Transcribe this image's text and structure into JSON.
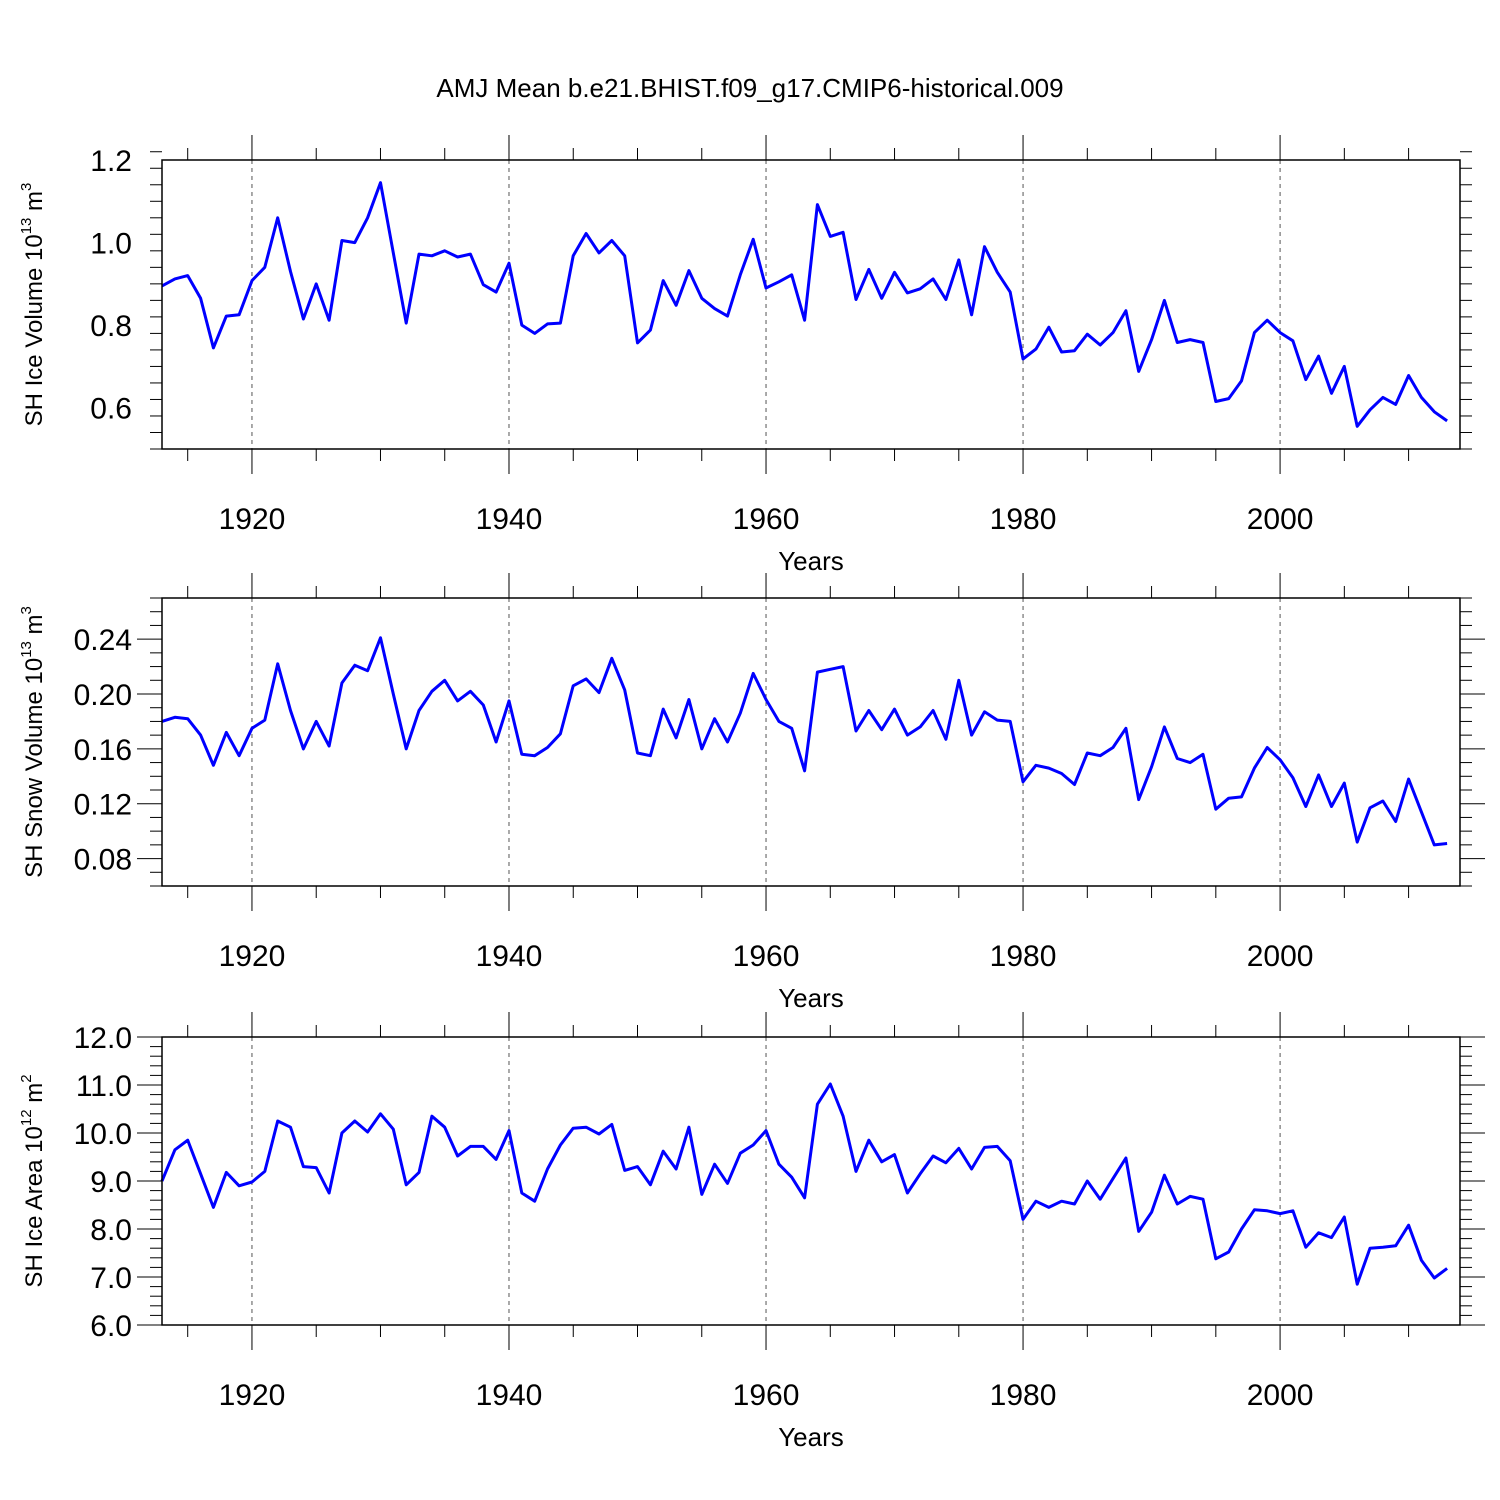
{
  "figure": {
    "title": "AMJ Mean b.e21.BHIST.f09_g17.CMIP6-historical.009",
    "series_color": "#0000ff"
  },
  "chart_data": [
    {
      "type": "line",
      "ylabel": {
        "text": "SH Ice Volume 10",
        "sup": "13",
        "unit": " m",
        "unit_sup": "3"
      },
      "xlabel": "Years",
      "xlim": [
        1913,
        2014
      ],
      "ylim": [
        0.5,
        1.2
      ],
      "yticks": [
        0.6,
        0.8,
        1.0,
        1.2
      ],
      "ytick_labels": [
        "0.6",
        "0.8",
        "1.0",
        "1.2"
      ],
      "yminor_step": 0.04,
      "xticks": [
        1920,
        1940,
        1960,
        1980,
        2000
      ],
      "xtick_labels": [
        "1920",
        "1940",
        "1960",
        "1980",
        "2000"
      ],
      "x_start": 1913,
      "values": [
        0.895,
        0.912,
        0.92,
        0.865,
        0.745,
        0.822,
        0.825,
        0.908,
        0.94,
        1.06,
        0.93,
        0.815,
        0.9,
        0.812,
        1.005,
        1.0,
        1.06,
        1.145,
        0.975,
        0.805,
        0.972,
        0.968,
        0.98,
        0.965,
        0.972,
        0.898,
        0.88,
        0.95,
        0.8,
        0.78,
        0.803,
        0.805,
        0.968,
        1.022,
        0.975,
        1.005,
        0.968,
        0.757,
        0.788,
        0.908,
        0.848,
        0.932,
        0.865,
        0.84,
        0.822,
        0.922,
        1.008,
        0.89,
        0.905,
        0.922,
        0.812,
        1.092,
        1.015,
        1.025,
        0.862,
        0.935,
        0.865,
        0.928,
        0.878,
        0.888,
        0.912,
        0.862,
        0.958,
        0.825,
        0.99,
        0.928,
        0.88,
        0.718,
        0.742,
        0.795,
        0.735,
        0.738,
        0.778,
        0.752,
        0.782,
        0.835,
        0.688,
        0.765,
        0.86,
        0.758,
        0.765,
        0.758,
        0.615,
        0.622,
        0.665,
        0.782,
        0.812,
        0.782,
        0.762,
        0.668,
        0.725,
        0.635,
        0.7,
        0.555,
        0.595,
        0.625,
        0.608,
        0.678,
        0.625,
        0.59,
        0.568
      ]
    },
    {
      "type": "line",
      "ylabel": {
        "text": "SH Snow Volume 10",
        "sup": "13",
        "unit": " m",
        "unit_sup": "3"
      },
      "xlabel": "Years",
      "xlim": [
        1913,
        2014
      ],
      "ylim": [
        0.06,
        0.27
      ],
      "yticks": [
        0.08,
        0.12,
        0.16,
        0.2,
        0.24
      ],
      "ytick_labels": [
        "0.08",
        "0.12",
        "0.16",
        "0.20",
        "0.24"
      ],
      "yminor_step": 0.01,
      "xticks": [
        1920,
        1940,
        1960,
        1980,
        2000
      ],
      "xtick_labels": [
        "1920",
        "1940",
        "1960",
        "1980",
        "2000"
      ],
      "x_start": 1913,
      "values": [
        0.18,
        0.183,
        0.182,
        0.17,
        0.148,
        0.172,
        0.155,
        0.175,
        0.181,
        0.222,
        0.188,
        0.16,
        0.18,
        0.162,
        0.208,
        0.221,
        0.217,
        0.241,
        0.2,
        0.16,
        0.188,
        0.202,
        0.21,
        0.195,
        0.202,
        0.192,
        0.165,
        0.195,
        0.156,
        0.155,
        0.161,
        0.171,
        0.206,
        0.211,
        0.201,
        0.226,
        0.203,
        0.157,
        0.155,
        0.189,
        0.168,
        0.196,
        0.16,
        0.182,
        0.165,
        0.186,
        0.215,
        0.196,
        0.18,
        0.175,
        0.144,
        0.216,
        0.218,
        0.22,
        0.173,
        0.188,
        0.174,
        0.189,
        0.17,
        0.176,
        0.188,
        0.167,
        0.21,
        0.17,
        0.187,
        0.181,
        0.18,
        0.136,
        0.148,
        0.146,
        0.142,
        0.134,
        0.157,
        0.155,
        0.161,
        0.175,
        0.123,
        0.147,
        0.176,
        0.153,
        0.15,
        0.156,
        0.116,
        0.124,
        0.125,
        0.146,
        0.161,
        0.152,
        0.139,
        0.118,
        0.141,
        0.118,
        0.135,
        0.092,
        0.117,
        0.122,
        0.107,
        0.138,
        0.114,
        0.09,
        0.091
      ]
    },
    {
      "type": "line",
      "ylabel": {
        "text": "SH Ice Area 10",
        "sup": "12",
        "unit": " m",
        "unit_sup": "2"
      },
      "xlabel": "Years",
      "xlim": [
        1913,
        2014
      ],
      "ylim": [
        6.0,
        12.0
      ],
      "yticks": [
        6.0,
        7.0,
        8.0,
        9.0,
        10.0,
        11.0,
        12.0
      ],
      "ytick_labels": [
        "6.0",
        "7.0",
        "8.0",
        "9.0",
        "10.0",
        "11.0",
        "12.0"
      ],
      "yminor_step": 0.2,
      "xticks": [
        1920,
        1940,
        1960,
        1980,
        2000
      ],
      "xtick_labels": [
        "1920",
        "1940",
        "1960",
        "1980",
        "2000"
      ],
      "x_start": 1913,
      "values": [
        9.0,
        9.65,
        9.85,
        9.15,
        8.45,
        9.18,
        8.9,
        8.98,
        9.2,
        10.25,
        10.12,
        9.3,
        9.28,
        8.75,
        10.0,
        10.25,
        10.02,
        10.4,
        10.08,
        8.92,
        9.18,
        10.35,
        10.12,
        9.52,
        9.72,
        9.72,
        9.45,
        10.05,
        8.75,
        8.58,
        9.25,
        9.75,
        10.1,
        10.12,
        9.98,
        10.18,
        9.22,
        9.3,
        8.92,
        9.62,
        9.25,
        10.12,
        8.72,
        9.35,
        8.95,
        9.58,
        9.75,
        10.05,
        9.35,
        9.08,
        8.65,
        10.6,
        11.02,
        10.35,
        9.2,
        9.85,
        9.4,
        9.55,
        8.75,
        9.15,
        9.52,
        9.38,
        9.68,
        9.25,
        9.7,
        9.72,
        9.42,
        8.2,
        8.58,
        8.45,
        8.58,
        8.52,
        9.0,
        8.62,
        9.05,
        9.48,
        7.95,
        8.35,
        9.12,
        8.52,
        8.68,
        8.62,
        7.38,
        7.52,
        8.0,
        8.4,
        8.38,
        8.32,
        8.38,
        7.62,
        7.92,
        7.82,
        8.25,
        6.85,
        7.6,
        7.62,
        7.65,
        8.08,
        7.35,
        6.98,
        7.18
      ]
    }
  ]
}
